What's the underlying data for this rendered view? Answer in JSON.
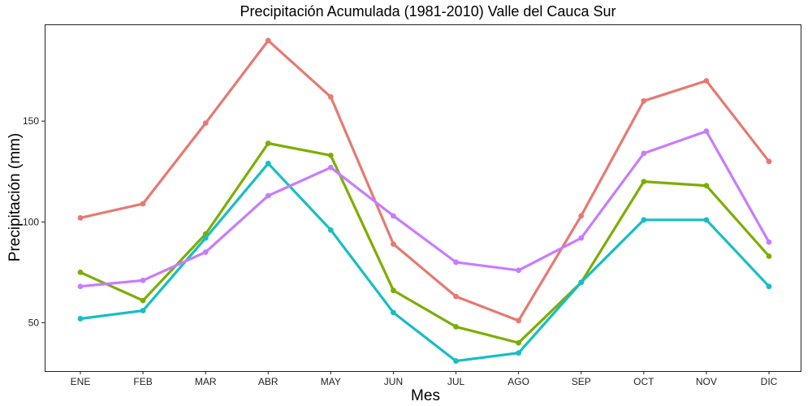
{
  "chart_data": {
    "type": "line",
    "title": "Precipitación Acumulada (1981-2010)  Valle del Cauca Sur",
    "xlabel": "Mes",
    "ylabel": "Precipitación  (mm)",
    "categories": [
      "ENE",
      "FEB",
      "MAR",
      "ABR",
      "MAY",
      "JUN",
      "JUL",
      "AGO",
      "SEP",
      "OCT",
      "NOV",
      "DIC"
    ],
    "yticks": [
      50,
      100,
      150
    ],
    "ylim": [
      26,
      198
    ],
    "grid": false,
    "legend": "none",
    "series": [
      {
        "color": "#E57A72",
        "values": [
          102,
          109,
          149,
          190,
          162,
          89,
          63,
          51,
          103,
          160,
          170,
          130
        ]
      },
      {
        "color": "#7CAE00",
        "values": [
          75,
          61,
          94,
          139,
          133,
          66,
          48,
          40,
          70,
          120,
          118,
          83
        ]
      },
      {
        "color": "#17BEC4",
        "values": [
          52,
          56,
          92,
          129,
          96,
          55,
          31,
          35,
          70,
          101,
          101,
          68
        ]
      },
      {
        "color": "#C77CFF",
        "values": [
          68,
          71,
          85,
          113,
          127,
          103,
          80,
          76,
          92,
          134,
          145,
          90
        ]
      }
    ]
  }
}
